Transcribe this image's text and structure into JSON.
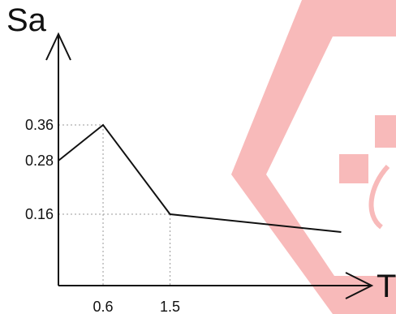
{
  "chart_data": {
    "type": "line",
    "ylabel": "Sa",
    "xlabel": "T",
    "x_ticks": [
      {
        "value": 0.6,
        "label": "0.6"
      },
      {
        "value": 1.5,
        "label": "1.5"
      }
    ],
    "y_ticks": [
      {
        "value": 0.36,
        "label": "0.36"
      },
      {
        "value": 0.28,
        "label": "0.28"
      },
      {
        "value": 0.16,
        "label": "0.16"
      }
    ],
    "series": [
      {
        "points": [
          {
            "x": 0.0,
            "y": 0.28
          },
          {
            "x": 0.6,
            "y": 0.36
          },
          {
            "x": 1.5,
            "y": 0.16
          },
          {
            "x": 3.8,
            "y": 0.12
          }
        ]
      }
    ],
    "grid": false,
    "reference_lines": "dotted guides from labelled points to axes"
  },
  "colors": {
    "line": "#111111",
    "guide": "#999999",
    "watermark": "#f3a0a0"
  },
  "watermark": {
    "icon": "diamond-logo-watermark"
  }
}
